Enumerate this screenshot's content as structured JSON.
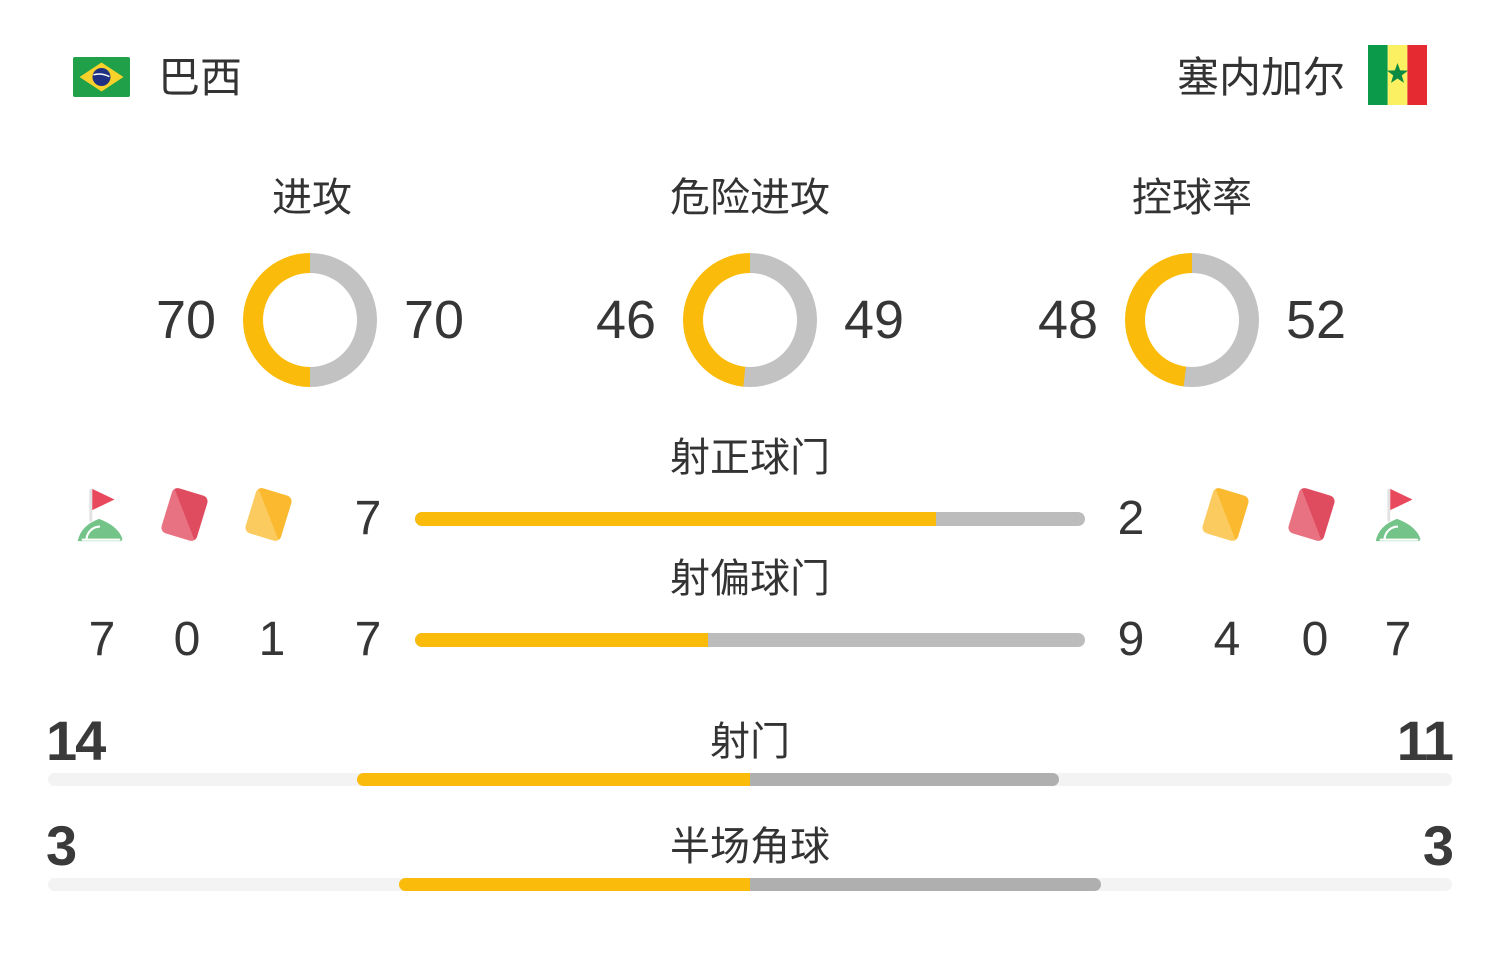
{
  "teams": {
    "home": "巴西",
    "away": "塞内加尔"
  },
  "colors": {
    "accent_yellow": "#FBBB0B",
    "ring_gray": "#C2C2C2",
    "duel_bar_gray": "#BCBCBC",
    "segment_gray": "#AFAFAF",
    "track_light": "#F3F3F3",
    "text": "#333333",
    "card_red": "#E04C5F",
    "card_yellow": "#FAB92E",
    "flag_red": "#E9495D",
    "hill_green": "#74C489"
  },
  "donuts": [
    {
      "label": "进攻",
      "home": 70,
      "away": 70
    },
    {
      "label": "危险进攻",
      "home": 46,
      "away": 49
    },
    {
      "label": "控球率",
      "home": 48,
      "away": 52
    }
  ],
  "duel_bars": [
    {
      "label": "射正球门",
      "home": 7,
      "away": 2
    },
    {
      "label": "射偏球门",
      "home": 7,
      "away": 9
    }
  ],
  "wide_bars": [
    {
      "label": "射门",
      "home": 14,
      "away": 11
    },
    {
      "label": "半场角球",
      "home": 3,
      "away": 3
    }
  ],
  "events": {
    "home": [
      {
        "icon": "corner-flag",
        "count": 7
      },
      {
        "icon": "red-card",
        "count": 0
      },
      {
        "icon": "yellow-card",
        "count": 1
      }
    ],
    "away": [
      {
        "icon": "yellow-card",
        "count": 4
      },
      {
        "icon": "red-card",
        "count": 0
      },
      {
        "icon": "corner-flag",
        "count": 7
      }
    ]
  },
  "chart_data": [
    {
      "type": "pie",
      "variant": "donut",
      "title": "进攻",
      "series": [
        {
          "name": "巴西",
          "value": 70
        },
        {
          "name": "塞内加尔",
          "value": 70
        }
      ],
      "colors": {
        "巴西": "#FBBB0B",
        "塞内加尔": "#C2C2C2"
      }
    },
    {
      "type": "pie",
      "variant": "donut",
      "title": "危险进攻",
      "series": [
        {
          "name": "巴西",
          "value": 46
        },
        {
          "name": "塞内加尔",
          "value": 49
        }
      ],
      "colors": {
        "巴西": "#FBBB0B",
        "塞内加尔": "#C2C2C2"
      }
    },
    {
      "type": "pie",
      "variant": "donut",
      "title": "控球率",
      "series": [
        {
          "name": "巴西",
          "value": 48
        },
        {
          "name": "塞内加尔",
          "value": 52
        }
      ],
      "colors": {
        "巴西": "#FBBB0B",
        "塞内加尔": "#C2C2C2"
      }
    },
    {
      "type": "bar",
      "title": "射正球门",
      "categories": [
        "巴西",
        "塞内加尔"
      ],
      "values": [
        7,
        2
      ]
    },
    {
      "type": "bar",
      "title": "射偏球门",
      "categories": [
        "巴西",
        "塞内加尔"
      ],
      "values": [
        7,
        9
      ]
    },
    {
      "type": "bar",
      "title": "射门",
      "categories": [
        "巴西",
        "塞内加尔"
      ],
      "values": [
        14,
        11
      ]
    },
    {
      "type": "bar",
      "title": "半场角球",
      "categories": [
        "巴西",
        "塞内加尔"
      ],
      "values": [
        3,
        3
      ]
    },
    {
      "type": "table",
      "title": "match-events",
      "columns": [
        "team",
        "corner_kicks",
        "red_cards",
        "yellow_cards"
      ],
      "rows": [
        {
          "team": "巴西",
          "corner_kicks": 7,
          "red_cards": 0,
          "yellow_cards": 1
        },
        {
          "team": "塞内加尔",
          "corner_kicks": 7,
          "red_cards": 0,
          "yellow_cards": 4
        }
      ]
    }
  ]
}
